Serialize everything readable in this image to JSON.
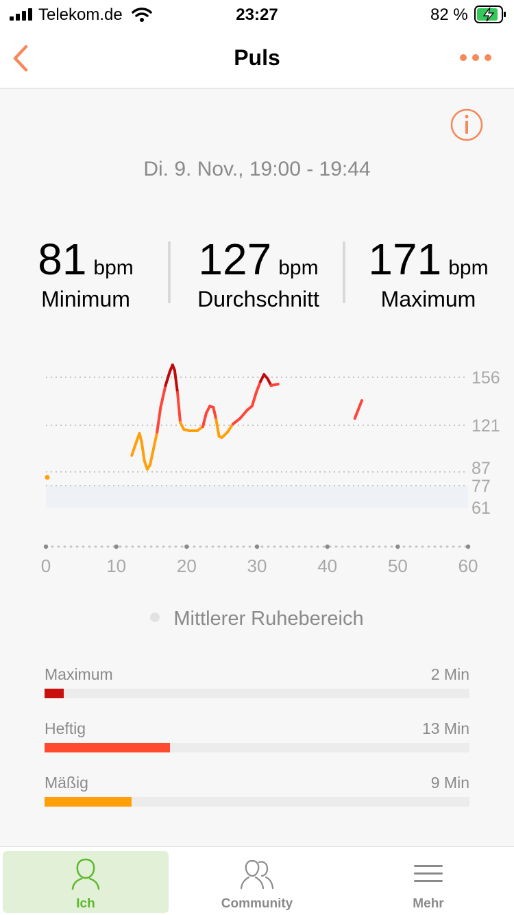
{
  "status_bar": {
    "carrier": "Telekom.de",
    "time": "23:27",
    "battery_percent": "82 %",
    "icons": [
      "signal-icon",
      "wifi-icon",
      "battery-charging-icon"
    ]
  },
  "nav": {
    "title": "Puls",
    "back_icon": "chevron-left-icon",
    "more_icon": "more-dots-icon"
  },
  "info_icon": "info-icon",
  "date_range": "Di. 9. Nov., 19:00 - 19:44",
  "stats": [
    {
      "value": "81",
      "unit": "bpm",
      "label": "Minimum"
    },
    {
      "value": "127",
      "unit": "bpm",
      "label": "Durchschnitt"
    },
    {
      "value": "171",
      "unit": "bpm",
      "label": "Maximum"
    }
  ],
  "chart_data": {
    "type": "line",
    "x_ticks": [
      "0",
      "10",
      "20",
      "30",
      "40",
      "50",
      "60"
    ],
    "xlim": [
      0,
      60
    ],
    "y_ticks": [
      "156",
      "121",
      "87",
      "77",
      "61"
    ],
    "y_tick_values": [
      156,
      121,
      87,
      77,
      61
    ],
    "resting_band": [
      61,
      77
    ],
    "grid": "dotted horizontal at y ticks",
    "colors": {
      "moderate": "#ff9f0a",
      "intense": "#ff453a",
      "maximum": "#c00a0a",
      "band": "#eef1f5"
    },
    "series": [
      {
        "values": [
          [
            0,
            83
          ],
          [
            12.2,
            99
          ],
          [
            12.6,
            105
          ],
          [
            13.0,
            111
          ],
          [
            13.3,
            115
          ],
          [
            13.6,
            109
          ],
          [
            14.0,
            95
          ],
          [
            14.4,
            89
          ],
          [
            14.8,
            92
          ],
          [
            15.3,
            104
          ],
          [
            15.8,
            116
          ],
          [
            16.3,
            134
          ],
          [
            17.0,
            150
          ],
          [
            17.6,
            160
          ],
          [
            18.0,
            165
          ],
          [
            18.3,
            161
          ],
          [
            18.7,
            145
          ],
          [
            19.1,
            123
          ],
          [
            19.6,
            118
          ],
          [
            20.4,
            117
          ],
          [
            21.5,
            117
          ],
          [
            22.3,
            120
          ],
          [
            22.8,
            130
          ],
          [
            23.3,
            135
          ],
          [
            23.8,
            134
          ],
          [
            24.2,
            125
          ],
          [
            24.6,
            113
          ],
          [
            25.0,
            112
          ],
          [
            25.8,
            116
          ],
          [
            26.6,
            122
          ],
          [
            27.6,
            126
          ],
          [
            28.6,
            132
          ],
          [
            29.3,
            135
          ],
          [
            29.9,
            145
          ],
          [
            30.5,
            153
          ],
          [
            31.0,
            158
          ],
          [
            31.5,
            155
          ],
          [
            32.0,
            150
          ],
          [
            33.0,
            151
          ]
        ]
      },
      {
        "values": [
          [
            43.9,
            126
          ],
          [
            44.9,
            139
          ]
        ]
      }
    ]
  },
  "legend_label": "Mittlerer Ruhebereich",
  "zones": [
    {
      "label": "Maximum",
      "value": "2 Min",
      "minutes": 2,
      "color": "#c8100e"
    },
    {
      "label": "Heftig",
      "value": "13 Min",
      "minutes": 13,
      "color": "#ff4a30"
    },
    {
      "label": "Mäßig",
      "value": "9 Min",
      "minutes": 9,
      "color": "#ff9f0a"
    }
  ],
  "tabs": [
    {
      "label": "Ich",
      "icon": "person-icon",
      "active": true
    },
    {
      "label": "Community",
      "icon": "community-icon",
      "active": false
    },
    {
      "label": "Mehr",
      "icon": "menu-icon",
      "active": false
    }
  ]
}
